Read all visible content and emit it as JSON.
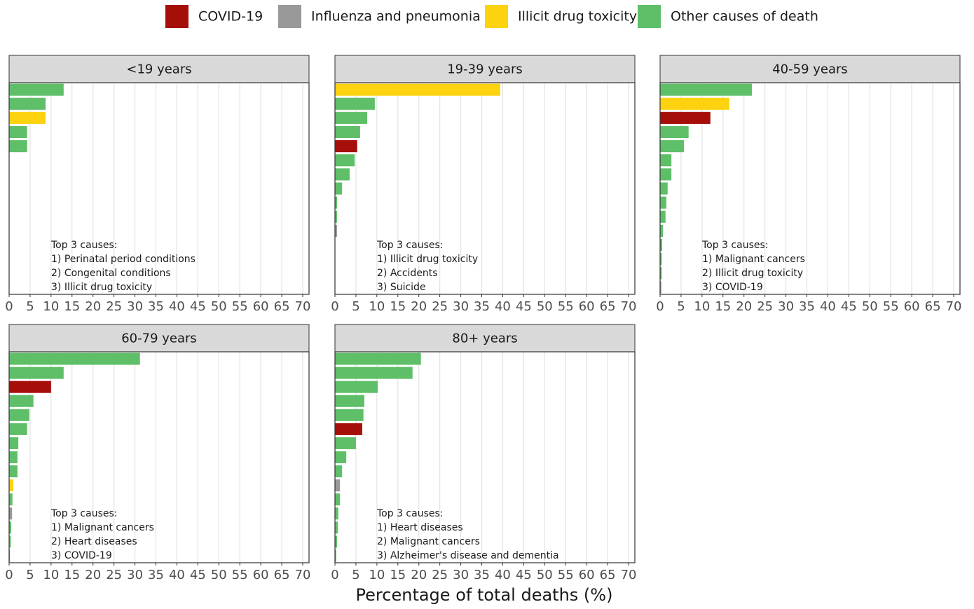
{
  "chart_data": {
    "type": "bar",
    "orientation": "horizontal",
    "xlabel": "Percentage of total deaths (%)",
    "xlim": [
      0,
      71.5
    ],
    "xticks": [
      0,
      5,
      10,
      15,
      20,
      25,
      30,
      35,
      40,
      45,
      50,
      55,
      60,
      65,
      70
    ],
    "grid": true,
    "legend_position": "top",
    "legend": [
      {
        "name": "COVID-19",
        "color": "#a50f0a"
      },
      {
        "name": "Influenza and pneumonia",
        "color": "#999999"
      },
      {
        "name": "Illicit drug toxicity",
        "color": "#fdd20e"
      },
      {
        "name": "Other causes of death",
        "color": "#5fbf68"
      }
    ],
    "panels": [
      {
        "title": "<19 years",
        "annotation": [
          "Top 3 causes:",
          "1) Perinatal period conditions",
          "2) Congenital conditions",
          "3) Illicit drug toxicity"
        ],
        "values": [
          13.0,
          8.7,
          8.7,
          4.3,
          4.3
        ],
        "colors": [
          "#5fbf68",
          "#5fbf68",
          "#fdd20e",
          "#5fbf68",
          "#5fbf68"
        ]
      },
      {
        "title": "19-39 years",
        "annotation": [
          "Top 3 causes:",
          "1) Illicit drug toxicity",
          "2) Accidents",
          "3) Suicide"
        ],
        "values": [
          39.4,
          9.5,
          7.7,
          6.0,
          5.3,
          4.7,
          3.5,
          1.7,
          0.5,
          0.5,
          0.5
        ],
        "colors": [
          "#fdd20e",
          "#5fbf68",
          "#5fbf68",
          "#5fbf68",
          "#a50f0a",
          "#5fbf68",
          "#5fbf68",
          "#5fbf68",
          "#5fbf68",
          "#5fbf68",
          "#999999"
        ]
      },
      {
        "title": "40-59 years",
        "annotation": [
          "Top 3 causes:",
          "1) Malignant cancers",
          "2) Illicit drug toxicity",
          "3) COVID-19"
        ],
        "values": [
          21.9,
          16.5,
          12.0,
          6.8,
          5.7,
          2.7,
          2.7,
          1.8,
          1.5,
          1.3,
          0.7,
          0.5,
          0.4,
          0.4,
          0.3
        ],
        "colors": [
          "#5fbf68",
          "#fdd20e",
          "#a50f0a",
          "#5fbf68",
          "#5fbf68",
          "#5fbf68",
          "#5fbf68",
          "#5fbf68",
          "#5fbf68",
          "#5fbf68",
          "#5fbf68",
          "#5fbf68",
          "#5fbf68",
          "#5fbf68",
          "#999999"
        ]
      },
      {
        "title": "60-79 years",
        "annotation": [
          "Top 3 causes:",
          "1) Malignant cancers",
          "2) Heart diseases",
          "3) COVID-19"
        ],
        "values": [
          31.2,
          13.0,
          10.0,
          5.8,
          4.8,
          4.3,
          2.2,
          2.0,
          2.0,
          1.0,
          0.8,
          0.7,
          0.5,
          0.4,
          0.2
        ],
        "colors": [
          "#5fbf68",
          "#5fbf68",
          "#a50f0a",
          "#5fbf68",
          "#5fbf68",
          "#5fbf68",
          "#5fbf68",
          "#5fbf68",
          "#5fbf68",
          "#fdd20e",
          "#5fbf68",
          "#999999",
          "#5fbf68",
          "#5fbf68",
          "#5fbf68"
        ]
      },
      {
        "title": "80+ years",
        "annotation": [
          "Top 3 causes:",
          "1) Heart diseases",
          "2) Malignant cancers",
          "3) Alzheimer's disease and dementia"
        ],
        "values": [
          20.5,
          18.5,
          10.2,
          7.0,
          6.8,
          6.5,
          5.0,
          2.7,
          1.7,
          1.2,
          1.2,
          0.8,
          0.7,
          0.5,
          0.3
        ],
        "colors": [
          "#5fbf68",
          "#5fbf68",
          "#5fbf68",
          "#5fbf68",
          "#5fbf68",
          "#a50f0a",
          "#5fbf68",
          "#5fbf68",
          "#5fbf68",
          "#999999",
          "#5fbf68",
          "#5fbf68",
          "#5fbf68",
          "#5fbf68",
          "#5fbf68"
        ]
      }
    ]
  }
}
